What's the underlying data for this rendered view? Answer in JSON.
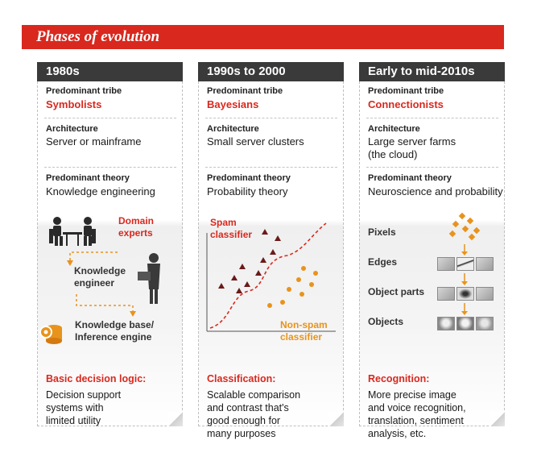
{
  "title": "Phases of evolution",
  "colors": {
    "accent": "#d9281e",
    "orange": "#e8931c",
    "header": "#3a3a3a"
  },
  "columns": [
    {
      "heading": "1980s",
      "tribe_label": "Predominant tribe",
      "tribe": "Symbolists",
      "arch_label": "Architecture",
      "arch": "Server or mainframe",
      "theory_label": "Predominant theory",
      "theory": "Knowledge engineering",
      "diagram": {
        "domain_experts": "Domain\nexperts",
        "knowledge_engineer": "Knowledge\nengineer",
        "knowledge_base": "Knowledge base/\nInference engine"
      },
      "summary_title": "Basic decision logic:",
      "summary": "Decision support\nsystems with\nlimited utility"
    },
    {
      "heading": "1990s to 2000",
      "tribe_label": "Predominant tribe",
      "tribe": "Bayesians",
      "arch_label": "Architecture",
      "arch": "Small server clusters",
      "theory_label": "Predominant theory",
      "theory": "Probability theory",
      "diagram": {
        "spam": "Spam\nclassifier",
        "nonspam": "Non-spam\nclassifier"
      },
      "summary_title": "Classification:",
      "summary": "Scalable comparison\nand contrast that's\ngood enough for\nmany purposes"
    },
    {
      "heading": "Early to mid-2010s",
      "tribe_label": "Predominant tribe",
      "tribe": "Connectionists",
      "arch_label": "Architecture",
      "arch": "Large server farms\n(the cloud)",
      "theory_label": "Predominant theory",
      "theory": "Neuroscience and probability",
      "diagram": {
        "pixels": "Pixels",
        "edges": "Edges",
        "object_parts": "Object parts",
        "objects": "Objects"
      },
      "summary_title": "Recognition:",
      "summary": "More precise image\nand voice recognition,\ntranslation, sentiment\nanalysis, etc."
    }
  ]
}
